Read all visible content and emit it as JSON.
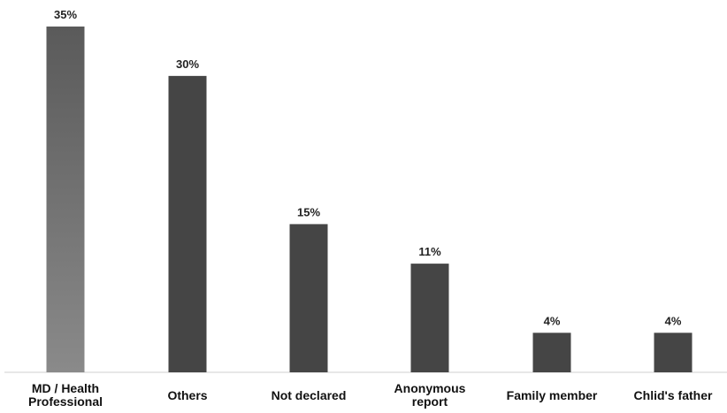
{
  "chart_data": {
    "type": "bar",
    "categories": [
      "MD / Health Professional",
      "Others",
      "Not declared",
      "Anonymous report",
      "Family member",
      "Chlid's father"
    ],
    "category_lines": [
      [
        "MD / Health",
        "Professional"
      ],
      [
        "Others"
      ],
      [
        "Not declared"
      ],
      [
        "Anonymous",
        "report"
      ],
      [
        "Family member"
      ],
      [
        "Chlid's father"
      ]
    ],
    "values": [
      35,
      30,
      15,
      11,
      4,
      4
    ],
    "value_labels": [
      "35%",
      "30%",
      "15%",
      "11%",
      "4%",
      "4%"
    ],
    "unit": "%",
    "ylim": [
      0,
      35
    ],
    "grid": false,
    "legend": "none",
    "title": "",
    "xlabel": "",
    "ylabel": "",
    "colors": {
      "bar": "#454545",
      "first_bar_top": "#5a5a5a",
      "first_bar_bottom": "#8a8a8a",
      "axis": "#cfcfcf",
      "text": "#1a1a1a"
    }
  }
}
